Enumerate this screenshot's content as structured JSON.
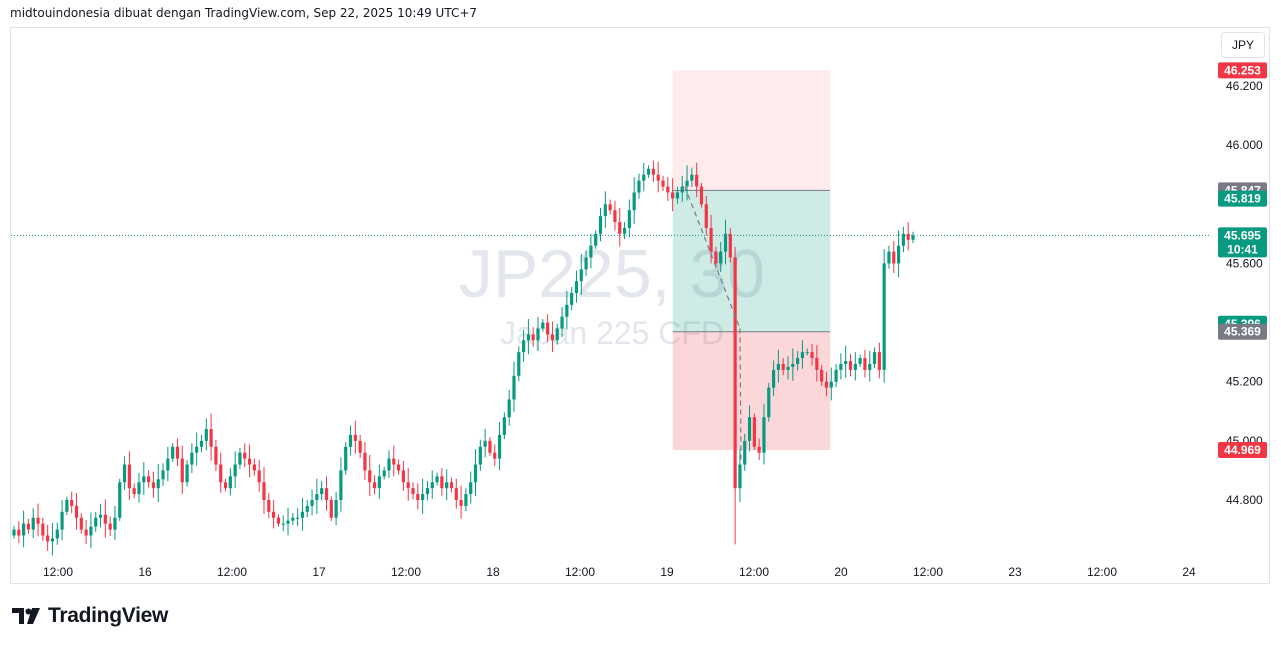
{
  "header": {
    "attribution": "midtouindonesia dibuat dengan TradingView.com, Sep 22, 2025 10:49 UTC+7"
  },
  "currency_button": "JPY",
  "watermark": {
    "symbol": "JP225, 30",
    "description": "Japan 225 CFD"
  },
  "logo": {
    "text": "TradingView"
  },
  "colors": {
    "up": "#089981",
    "down": "#f23645",
    "grey_badge": "#787b86",
    "target_zone": "rgba(8,153,129,0.20)",
    "stop_zone_light": "rgba(242,54,69,0.10)",
    "stop_zone": "rgba(242,54,69,0.20)"
  },
  "chart_data": {
    "type": "candlestick",
    "y_axis": {
      "ylim": [
        44.62,
        46.36
      ],
      "ticks": [
        "46.200",
        "46.000",
        "45.600",
        "45.200",
        "45.000",
        "44.800"
      ],
      "tick_values": [
        46.2,
        46.0,
        45.6,
        45.2,
        45.0,
        44.8
      ]
    },
    "x_axis": {
      "labels": [
        "12:00",
        "16",
        "12:00",
        "17",
        "12:00",
        "18",
        "12:00",
        "19",
        "12:00",
        "20",
        "12:00",
        "23",
        "12:00",
        "24"
      ],
      "hours_from_16_00": [
        -12,
        0,
        12,
        24,
        36,
        48,
        60,
        72,
        84,
        96,
        108,
        120,
        132,
        144
      ]
    },
    "price_badges": [
      {
        "label": "46.253",
        "value": 46.253,
        "color": "down"
      },
      {
        "label": "45.847",
        "value": 45.847,
        "color": "grey_badge"
      },
      {
        "label": "45.819",
        "value": 45.819,
        "color": "up"
      },
      {
        "label": "45.695",
        "value": 45.695,
        "color": "up",
        "countdown": "10:41"
      },
      {
        "label": "45.396",
        "value": 45.396,
        "color": "up"
      },
      {
        "label": "45.369",
        "value": 45.369,
        "color": "grey_badge"
      },
      {
        "label": "44.969",
        "value": 44.969,
        "color": "down"
      }
    ],
    "current_price": 45.695,
    "position": {
      "entry": 45.847,
      "target": 45.369,
      "stop": 46.253,
      "stop_lower_zone_bottom": 44.969,
      "x_start_hours": 72.8,
      "x_end_hours": 94.5
    },
    "closes": [
      44.7,
      44.68,
      44.72,
      44.7,
      44.74,
      44.72,
      44.68,
      44.66,
      44.67,
      44.7,
      44.76,
      44.8,
      44.78,
      44.74,
      44.7,
      44.68,
      44.71,
      44.74,
      44.75,
      44.72,
      44.7,
      44.74,
      44.86,
      44.92,
      44.84,
      44.82,
      44.86,
      44.88,
      44.86,
      44.84,
      44.87,
      44.9,
      44.94,
      44.98,
      44.94,
      44.86,
      44.92,
      44.96,
      44.98,
      45.0,
      45.04,
      44.98,
      44.92,
      44.86,
      44.84,
      44.88,
      44.92,
      44.96,
      44.94,
      44.92,
      44.9,
      44.86,
      44.8,
      44.76,
      44.74,
      44.72,
      44.72,
      44.73,
      44.74,
      44.74,
      44.76,
      44.78,
      44.8,
      44.82,
      44.84,
      44.8,
      44.74,
      44.8,
      44.9,
      44.98,
      45.02,
      45.0,
      44.96,
      44.9,
      44.86,
      44.84,
      44.88,
      44.9,
      44.94,
      44.92,
      44.9,
      44.86,
      44.84,
      44.82,
      44.8,
      44.82,
      44.84,
      44.86,
      44.88,
      44.84,
      44.86,
      44.84,
      44.8,
      44.78,
      44.82,
      44.86,
      44.92,
      44.98,
      45.0,
      44.96,
      44.94,
      45.02,
      45.08,
      45.14,
      45.22,
      45.3,
      45.34,
      45.36,
      45.34,
      45.38,
      45.4,
      45.36,
      45.34,
      45.38,
      45.42,
      45.46,
      45.5,
      45.54,
      45.58,
      45.62,
      45.66,
      45.7,
      45.76,
      45.8,
      45.78,
      45.74,
      45.7,
      45.72,
      45.78,
      45.84,
      45.88,
      45.9,
      45.92,
      45.9,
      45.88,
      45.86,
      45.84,
      45.82,
      45.84,
      45.86,
      45.88,
      45.9,
      45.86,
      45.8,
      45.72,
      45.64,
      45.6,
      45.64,
      45.7,
      45.62,
      44.84,
      44.92,
      45.0,
      45.08,
      44.98,
      44.96,
      45.08,
      45.18,
      45.24,
      45.26,
      45.24,
      45.25,
      45.26,
      45.28,
      45.3,
      45.3,
      45.28,
      45.24,
      45.2,
      45.18,
      45.2,
      45.24,
      45.26,
      45.27,
      45.24,
      45.26,
      45.28,
      45.24,
      45.26,
      45.3,
      45.24,
      45.6,
      45.64,
      45.6,
      45.66,
      45.7,
      45.68,
      45.695
    ]
  }
}
